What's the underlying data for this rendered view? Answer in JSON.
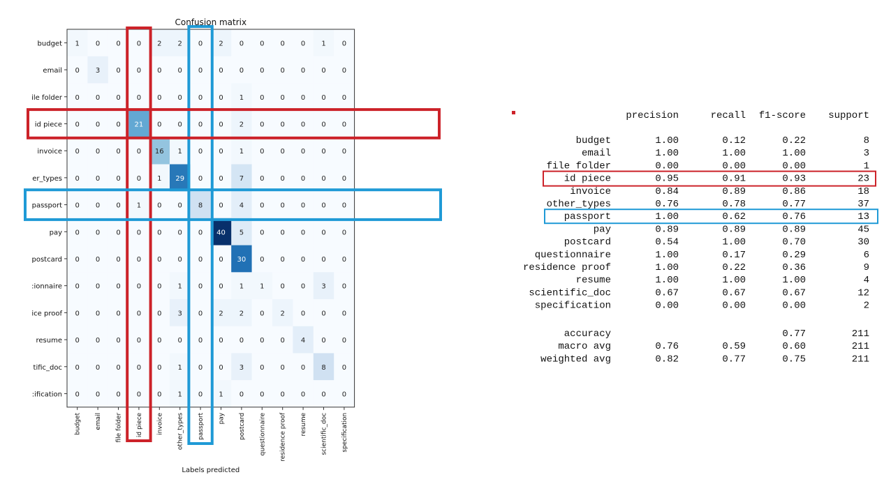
{
  "confusion_matrix": {
    "title": "Confusion matrix",
    "xlabel": "Labels predicted",
    "row_tick_labels": [
      "budget",
      "email",
      "ile folder",
      "id piece",
      "invoice",
      "er_types",
      "passport",
      "pay",
      "postcard",
      ":ionnaire",
      "ice proof",
      "resume",
      "tific_doc",
      ":ification"
    ],
    "col_tick_labels": [
      "budget",
      "email",
      "file folder",
      "id piece",
      "invoice",
      "other_types",
      "passport",
      "pay",
      "postcard",
      "questionnaire",
      "residence proof",
      "resume",
      "scientific_doc",
      "specification"
    ],
    "highlights": {
      "red_index": 3,
      "blue_index": 6,
      "red_color": "#cc2229",
      "blue_color": "#1f9ad6"
    }
  },
  "chart_data": {
    "type": "heatmap",
    "title": "Confusion matrix",
    "xlabel": "Labels predicted",
    "colormap": "Blues",
    "vmin": 0,
    "vmax": 40,
    "values": [
      [
        1,
        0,
        0,
        0,
        2,
        2,
        0,
        2,
        0,
        0,
        0,
        0,
        1,
        0
      ],
      [
        0,
        3,
        0,
        0,
        0,
        0,
        0,
        0,
        0,
        0,
        0,
        0,
        0,
        0
      ],
      [
        0,
        0,
        0,
        0,
        0,
        0,
        0,
        0,
        1,
        0,
        0,
        0,
        0,
        0
      ],
      [
        0,
        0,
        0,
        21,
        0,
        0,
        0,
        0,
        2,
        0,
        0,
        0,
        0,
        0
      ],
      [
        0,
        0,
        0,
        0,
        16,
        1,
        0,
        0,
        1,
        0,
        0,
        0,
        0,
        0
      ],
      [
        0,
        0,
        0,
        0,
        1,
        29,
        0,
        0,
        7,
        0,
        0,
        0,
        0,
        0
      ],
      [
        0,
        0,
        0,
        1,
        0,
        0,
        8,
        0,
        4,
        0,
        0,
        0,
        0,
        0
      ],
      [
        0,
        0,
        0,
        0,
        0,
        0,
        0,
        40,
        5,
        0,
        0,
        0,
        0,
        0
      ],
      [
        0,
        0,
        0,
        0,
        0,
        0,
        0,
        0,
        30,
        0,
        0,
        0,
        0,
        0
      ],
      [
        0,
        0,
        0,
        0,
        0,
        1,
        0,
        0,
        1,
        1,
        0,
        0,
        3,
        0
      ],
      [
        0,
        0,
        0,
        0,
        0,
        3,
        0,
        2,
        2,
        0,
        2,
        0,
        0,
        0
      ],
      [
        0,
        0,
        0,
        0,
        0,
        0,
        0,
        0,
        0,
        0,
        0,
        4,
        0,
        0
      ],
      [
        0,
        0,
        0,
        0,
        0,
        1,
        0,
        0,
        3,
        0,
        0,
        0,
        8,
        0
      ],
      [
        0,
        0,
        0,
        0,
        0,
        1,
        0,
        1,
        0,
        0,
        0,
        0,
        0,
        0
      ]
    ]
  },
  "report": {
    "headers": [
      "precision",
      "recall",
      "f1-score",
      "support"
    ],
    "rows": [
      [
        "budget",
        "1.00",
        "0.12",
        "0.22",
        "8"
      ],
      [
        "email",
        "1.00",
        "1.00",
        "1.00",
        "3"
      ],
      [
        "file folder",
        "0.00",
        "0.00",
        "0.00",
        "1"
      ],
      [
        "id piece",
        "0.95",
        "0.91",
        "0.93",
        "23"
      ],
      [
        "invoice",
        "0.84",
        "0.89",
        "0.86",
        "18"
      ],
      [
        "other_types",
        "0.76",
        "0.78",
        "0.77",
        "37"
      ],
      [
        "passport",
        "1.00",
        "0.62",
        "0.76",
        "13"
      ],
      [
        "pay",
        "0.89",
        "0.89",
        "0.89",
        "45"
      ],
      [
        "postcard",
        "0.54",
        "1.00",
        "0.70",
        "30"
      ],
      [
        "questionnaire",
        "1.00",
        "0.17",
        "0.29",
        "6"
      ],
      [
        "residence proof",
        "1.00",
        "0.22",
        "0.36",
        "9"
      ],
      [
        "resume",
        "1.00",
        "1.00",
        "1.00",
        "4"
      ],
      [
        "scientific_doc",
        "0.67",
        "0.67",
        "0.67",
        "12"
      ],
      [
        "specification",
        "0.00",
        "0.00",
        "0.00",
        "2"
      ]
    ],
    "summary": [
      [
        "accuracy",
        "",
        "",
        "0.77",
        "211"
      ],
      [
        "macro avg",
        "0.76",
        "0.59",
        "0.60",
        "211"
      ],
      [
        "weighted avg",
        "0.82",
        "0.77",
        "0.75",
        "211"
      ]
    ],
    "highlight_rows": {
      "red": 3,
      "blue": 6
    }
  }
}
